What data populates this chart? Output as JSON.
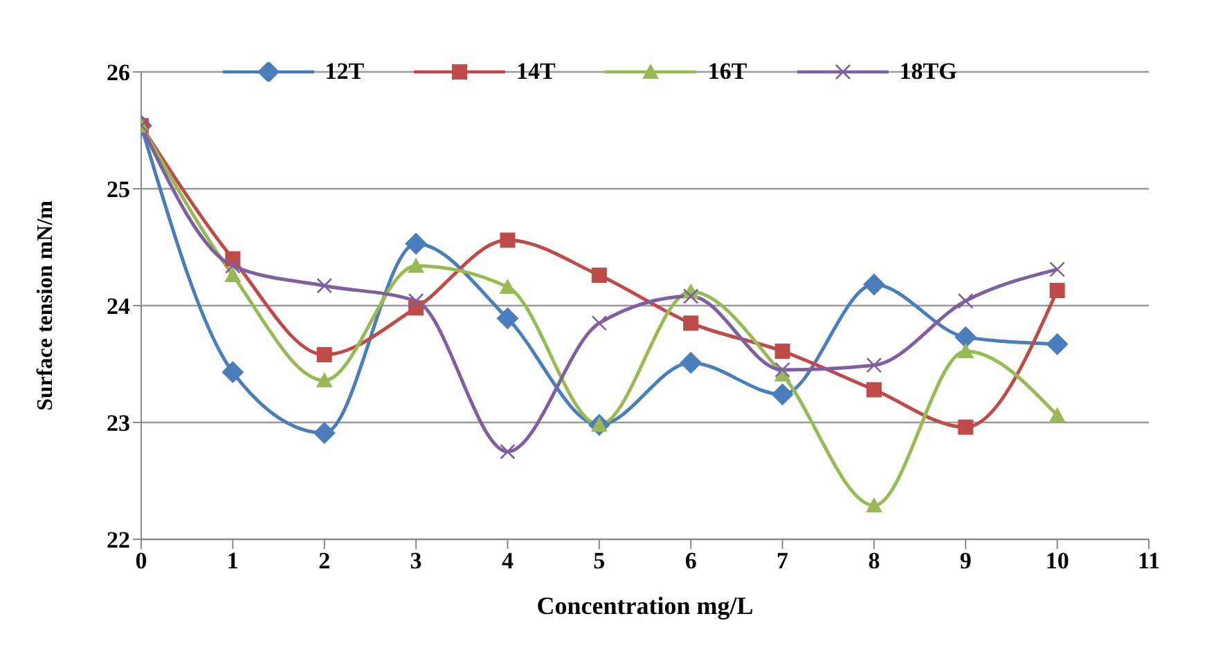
{
  "chart_data": {
    "type": "line",
    "xlabel": "Concentration mg/L",
    "ylabel": "Surface tension mN/m",
    "x": [
      0,
      1,
      2,
      3,
      4,
      5,
      6,
      7,
      8,
      9,
      10
    ],
    "xlim": [
      0,
      11
    ],
    "xticks": [
      0,
      1,
      2,
      3,
      4,
      5,
      6,
      7,
      8,
      9,
      10,
      11
    ],
    "ylim": [
      22,
      26
    ],
    "yticks": [
      22,
      23,
      24,
      25,
      26
    ],
    "grid": "y",
    "legend": "top",
    "line_style": "solid",
    "series": [
      {
        "name": "12T",
        "color": "#4a7ebb",
        "marker": "diamond",
        "values": [
          25.54,
          23.43,
          22.91,
          24.53,
          23.89,
          22.98,
          23.51,
          23.24,
          24.18,
          23.73,
          23.67
        ]
      },
      {
        "name": "14T",
        "color": "#be4b48",
        "marker": "square",
        "values": [
          25.54,
          24.4,
          23.58,
          23.98,
          24.56,
          24.26,
          23.85,
          23.61,
          23.28,
          22.96,
          24.13
        ]
      },
      {
        "name": "16T",
        "color": "#98b954",
        "marker": "triangle",
        "values": [
          25.54,
          24.26,
          23.36,
          24.34,
          24.16,
          22.98,
          24.12,
          23.41,
          22.29,
          23.61,
          23.06
        ]
      },
      {
        "name": "18TG",
        "color": "#7d60a0",
        "marker": "cross",
        "values": [
          25.54,
          24.34,
          24.17,
          24.04,
          22.75,
          23.85,
          24.08,
          23.45,
          23.49,
          24.04,
          24.31
        ]
      }
    ]
  }
}
